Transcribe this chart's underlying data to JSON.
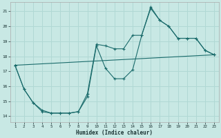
{
  "title": "",
  "xlabel": "Humidex (Indice chaleur)",
  "bg_color": "#c8e8e4",
  "line_color": "#1a6b6b",
  "grid_color": "#b0d8d4",
  "x_ticks": [
    1,
    2,
    3,
    4,
    5,
    6,
    7,
    8,
    9,
    10,
    11,
    12,
    13,
    14,
    15,
    16,
    17,
    18,
    19,
    20,
    21,
    22,
    23
  ],
  "y_ticks": [
    14,
    15,
    16,
    17,
    18,
    19,
    20,
    21
  ],
  "xlim": [
    0.5,
    23.5
  ],
  "ylim": [
    13.6,
    21.6
  ],
  "series1_x": [
    1,
    2,
    3,
    4,
    5,
    6,
    7,
    8,
    9,
    10,
    11,
    12,
    13,
    14,
    15,
    16,
    17,
    18,
    19,
    20,
    21,
    22,
    23
  ],
  "series1_y": [
    17.4,
    15.8,
    14.9,
    14.4,
    14.2,
    14.2,
    14.2,
    14.3,
    15.3,
    18.7,
    17.2,
    16.5,
    16.5,
    17.1,
    19.4,
    21.2,
    20.4,
    20.0,
    19.2,
    19.2,
    19.2,
    18.4,
    18.1
  ],
  "series2_x": [
    1,
    2,
    3,
    4,
    5,
    6,
    7,
    8,
    9,
    10,
    11,
    12,
    13,
    14,
    15,
    16,
    17,
    18,
    19,
    20,
    21,
    22,
    23
  ],
  "series2_y": [
    17.4,
    15.8,
    14.9,
    14.3,
    14.2,
    14.2,
    14.2,
    14.3,
    15.5,
    18.8,
    18.7,
    18.5,
    18.5,
    19.4,
    19.4,
    21.3,
    20.4,
    20.0,
    19.2,
    19.2,
    19.2,
    18.4,
    18.1
  ],
  "series3_x": [
    1,
    23
  ],
  "series3_y": [
    17.4,
    18.1
  ]
}
